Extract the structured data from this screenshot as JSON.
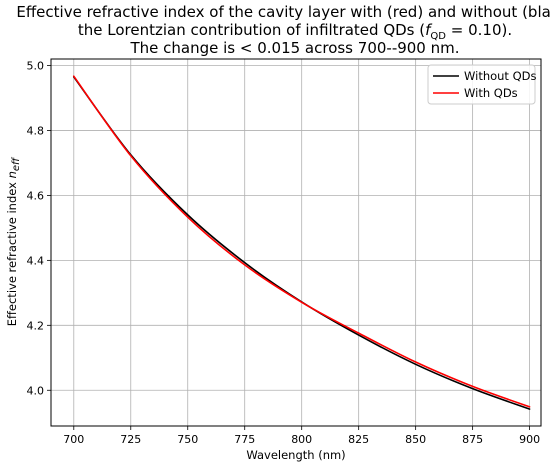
{
  "chart_data": {
    "type": "line",
    "title": {
      "line1": "Effective refractive index of the cavity layer with (red) and without (black)",
      "line2_prefix": "the Lorentzian contribution of infiltrated QDs (",
      "line2_f": "f",
      "line2_sub": "QD",
      "line2_value": " = 0.10).",
      "line3": "The change is  < 0.015 across 700--900 nm."
    },
    "xlabel": "Wavelength (nm)",
    "ylabel_main": "Effective refractive index ",
    "ylabel_n": "n",
    "ylabel_sub": "eff",
    "xlim": [
      690,
      905
    ],
    "ylim": [
      3.89,
      5.02
    ],
    "xticks": [
      700,
      725,
      750,
      775,
      800,
      825,
      850,
      875,
      900
    ],
    "yticks": [
      4.0,
      4.2,
      4.4,
      4.6,
      4.8,
      5.0
    ],
    "xtick_labels": [
      "700",
      "725",
      "750",
      "775",
      "800",
      "825",
      "850",
      "875",
      "900"
    ],
    "ytick_labels": [
      "4.0",
      "4.2",
      "4.4",
      "4.6",
      "4.8",
      "5.0"
    ],
    "grid": true,
    "legend_position": "top-right",
    "x": [
      700,
      725,
      750,
      775,
      800,
      825,
      850,
      875,
      900
    ],
    "series": [
      {
        "name": "Without QDs",
        "color": "#000000",
        "values": [
          4.965,
          4.725,
          4.54,
          4.393,
          4.272,
          4.17,
          4.08,
          4.005,
          3.942
        ]
      },
      {
        "name": "With QDs",
        "color": "#ff0000",
        "values": [
          4.967,
          4.722,
          4.533,
          4.386,
          4.271,
          4.176,
          4.087,
          4.012,
          3.949
        ]
      }
    ]
  }
}
